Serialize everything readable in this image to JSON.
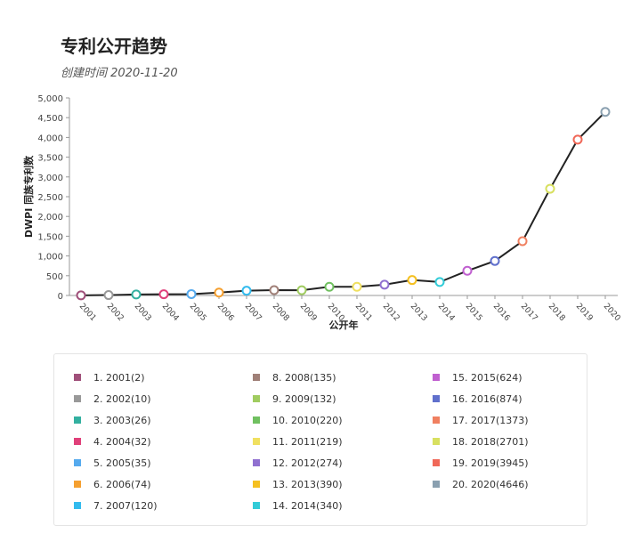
{
  "header": {
    "title": "专利公开趋势",
    "subtitle": "创建时间 2020-11-20"
  },
  "chart_data": {
    "type": "line",
    "title": "专利公开趋势",
    "subtitle": "创建时间 2020-11-20",
    "xlabel": "公开年",
    "ylabel": "DWPI 同族专利数",
    "ylim": [
      0,
      5000
    ],
    "yticks": [
      "0",
      "500",
      "1,000",
      "1,500",
      "2,000",
      "2,500",
      "3,000",
      "3,500",
      "4,000",
      "4,500",
      "5,000"
    ],
    "ytick_values": [
      0,
      500,
      1000,
      1500,
      2000,
      2500,
      3000,
      3500,
      4000,
      4500,
      5000
    ],
    "line_color": "#222222",
    "categories": [
      "2001",
      "2002",
      "2003",
      "2004",
      "2005",
      "2006",
      "2007",
      "2008",
      "2009",
      "2010",
      "2011",
      "2012",
      "2013",
      "2014",
      "2015",
      "2016",
      "2017",
      "2018",
      "2019",
      "2020"
    ],
    "values": [
      2,
      10,
      26,
      32,
      35,
      74,
      120,
      135,
      132,
      220,
      219,
      274,
      390,
      340,
      624,
      874,
      1373,
      2701,
      3945,
      4646
    ],
    "point_colors": [
      "#a0507a",
      "#999999",
      "#33b0a0",
      "#e0407a",
      "#55aaee",
      "#f5a030",
      "#33bbee",
      "#a08078",
      "#a0cc60",
      "#70c060",
      "#f0e060",
      "#9070d0",
      "#f5c020",
      "#33ccd8",
      "#c060d0",
      "#6070cc",
      "#f08060",
      "#d8e060",
      "#f06858",
      "#8aa0b0"
    ],
    "legend": [
      "1. 2001(2)",
      "2. 2002(10)",
      "3. 2003(26)",
      "4. 2004(32)",
      "5. 2005(35)",
      "6. 2006(74)",
      "7. 2007(120)",
      "8. 2008(135)",
      "9. 2009(132)",
      "10. 2010(220)",
      "11. 2011(219)",
      "12. 2012(274)",
      "13. 2013(390)",
      "14. 2014(340)",
      "15. 2015(624)",
      "16. 2016(874)",
      "17. 2017(1373)",
      "18. 2018(2701)",
      "19. 2019(3945)",
      "20. 2020(4646)"
    ],
    "legend_placement": "bottom",
    "grid": false
  }
}
